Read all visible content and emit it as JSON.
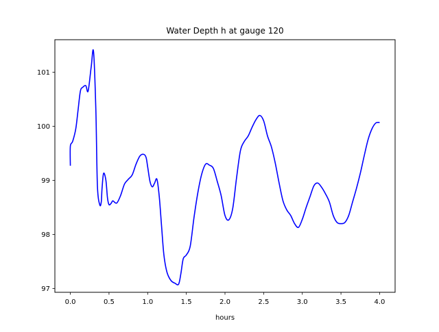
{
  "chart_data": {
    "type": "line",
    "title": "Water Depth h at gauge 120",
    "xlabel": "hours",
    "ylabel": "",
    "xlim": [
      -0.2,
      4.2
    ],
    "ylim": [
      96.93,
      101.6
    ],
    "xticks": [
      0.0,
      0.5,
      1.0,
      1.5,
      2.0,
      2.5,
      3.0,
      3.5,
      4.0
    ],
    "xtick_labels": [
      "0.0",
      "0.5",
      "1.0",
      "1.5",
      "2.0",
      "2.5",
      "3.0",
      "3.5",
      "4.0"
    ],
    "yticks": [
      97,
      98,
      99,
      100,
      101
    ],
    "ytick_labels": [
      "97",
      "98",
      "99",
      "100",
      "101"
    ],
    "grid": false,
    "series": [
      {
        "color": "#0000ff",
        "x": [
          0.0,
          0.0,
          0.03,
          0.07,
          0.1,
          0.13,
          0.16,
          0.2,
          0.23,
          0.27,
          0.3,
          0.33,
          0.35,
          0.38,
          0.4,
          0.41,
          0.43,
          0.46,
          0.48,
          0.5,
          0.53,
          0.55,
          0.6,
          0.65,
          0.7,
          0.75,
          0.8,
          0.85,
          0.9,
          0.95,
          0.98,
          1.0,
          1.03,
          1.06,
          1.09,
          1.12,
          1.15,
          1.18,
          1.21,
          1.25,
          1.3,
          1.35,
          1.4,
          1.43,
          1.46,
          1.5,
          1.55,
          1.6,
          1.65,
          1.7,
          1.75,
          1.8,
          1.85,
          1.9,
          1.95,
          2.0,
          2.05,
          2.1,
          2.15,
          2.2,
          2.25,
          2.3,
          2.35,
          2.4,
          2.45,
          2.5,
          2.55,
          2.6,
          2.65,
          2.7,
          2.75,
          2.8,
          2.85,
          2.9,
          2.95,
          3.0,
          3.05,
          3.1,
          3.15,
          3.2,
          3.25,
          3.3,
          3.35,
          3.4,
          3.45,
          3.5,
          3.55,
          3.6,
          3.65,
          3.7,
          3.75,
          3.8,
          3.85,
          3.9,
          3.95,
          4.0
        ],
        "y": [
          99.27,
          99.63,
          99.72,
          99.95,
          100.3,
          100.65,
          100.72,
          100.75,
          100.65,
          101.1,
          101.38,
          100.3,
          98.9,
          98.55,
          98.6,
          98.85,
          99.13,
          99.0,
          98.68,
          98.55,
          98.58,
          98.62,
          98.58,
          98.72,
          98.93,
          99.02,
          99.1,
          99.3,
          99.45,
          99.48,
          99.42,
          99.25,
          98.98,
          98.88,
          98.95,
          99.02,
          98.7,
          98.15,
          97.62,
          97.3,
          97.15,
          97.1,
          97.08,
          97.28,
          97.55,
          97.62,
          97.78,
          98.32,
          98.78,
          99.12,
          99.3,
          99.28,
          99.22,
          98.98,
          98.72,
          98.35,
          98.27,
          98.48,
          99.05,
          99.55,
          99.72,
          99.82,
          99.98,
          100.12,
          100.2,
          100.1,
          99.82,
          99.62,
          99.32,
          98.95,
          98.62,
          98.45,
          98.35,
          98.2,
          98.13,
          98.28,
          98.5,
          98.7,
          98.9,
          98.95,
          98.87,
          98.75,
          98.6,
          98.35,
          98.22,
          98.2,
          98.22,
          98.35,
          98.6,
          98.85,
          99.13,
          99.45,
          99.75,
          99.95,
          100.06,
          100.07
        ]
      }
    ]
  }
}
